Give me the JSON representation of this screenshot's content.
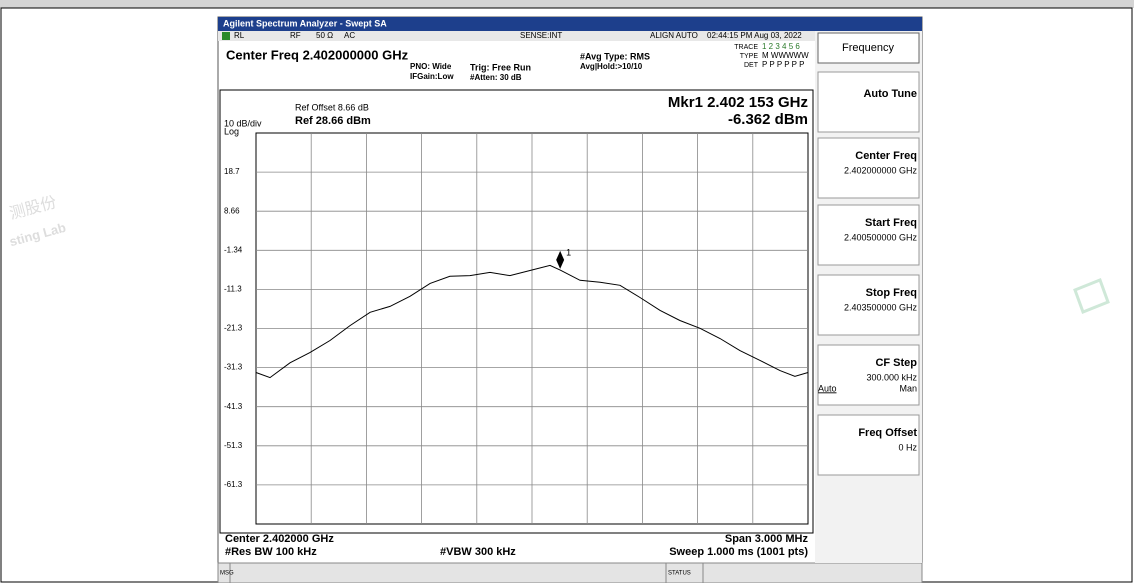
{
  "window": {
    "title": "Agilent Spectrum Analyzer - Swept SA"
  },
  "status": {
    "rl": "RL",
    "rf": "RF",
    "impedance": "50 Ω",
    "coupling": "AC",
    "sense": "SENSE:INT",
    "align": "ALIGN AUTO",
    "datetime": "02:44:15 PM Aug 03, 2022"
  },
  "settings": {
    "center_freq": "Center Freq 2.402000000 GHz",
    "pno": "PNO: Wide",
    "ifgain": "IFGain:Low",
    "trig": "Trig: Free Run",
    "atten": "#Atten: 30 dB",
    "avg_type": "#Avg Type: RMS",
    "avg_hold": "Avg|Hold:>10/10",
    "trace_label": "TRACE",
    "trace_value": "1 2 3 4 5 6",
    "type_label": "TYPE",
    "type_value": "M WWWWW",
    "det_label": "DET",
    "det_value": "P P P P P P"
  },
  "plot": {
    "ref_offset": "Ref Offset 8.66 dB",
    "scale": "10 dB/div",
    "scale_type": "Log",
    "ref_level": "Ref 28.66 dBm",
    "marker_freq": "Mkr1 2.402 153 GHz",
    "marker_level": "-6.362 dBm",
    "ylim": [
      -71.34,
      28.66
    ],
    "yticks": [
      {
        "value": 18.66,
        "label": "18.7"
      },
      8.66,
      -1.34,
      {
        "value": -11.34,
        "label": "-11.3"
      },
      {
        "value": -21.34,
        "label": "-21.3"
      },
      {
        "value": -31.34,
        "label": "-31.3"
      },
      {
        "value": -41.34,
        "label": "-41.3"
      },
      {
        "value": -51.34,
        "label": "-51.3"
      },
      {
        "value": -61.34,
        "label": "-61.3"
      }
    ],
    "xlim": [
      2400.5,
      2403.5
    ],
    "trace": {
      "freq_mhz": [
        2400.5,
        2400.576,
        2400.685,
        2400.793,
        2400.902,
        2401.011,
        2401.12,
        2401.228,
        2401.337,
        2401.446,
        2401.554,
        2401.663,
        2401.772,
        2401.88,
        2401.989,
        2402.098,
        2402.153,
        2402.261,
        2402.37,
        2402.478,
        2402.587,
        2402.696,
        2402.804,
        2402.913,
        2403.022,
        2403.13,
        2403.239,
        2403.348,
        2403.429,
        2403.5
      ],
      "level_dbm": [
        -32.6,
        -33.9,
        -30.1,
        -27.5,
        -24.4,
        -20.6,
        -17.2,
        -15.7,
        -13.1,
        -9.8,
        -8.0,
        -7.8,
        -7.0,
        -7.8,
        -6.5,
        -5.2,
        -6.4,
        -9.0,
        -9.5,
        -10.3,
        -13.4,
        -16.7,
        -19.3,
        -21.3,
        -23.9,
        -27.0,
        -29.5,
        -32.1,
        -33.6,
        -32.6
      ]
    },
    "marker": {
      "label": "1",
      "freq_mhz": 2402.153,
      "level_dbm": -6.362
    }
  },
  "footer": {
    "center": "Center 2.402000 GHz",
    "span": "Span 3.000 MHz",
    "rbw": "#Res BW 100 kHz",
    "vbw": "#VBW 300 kHz",
    "sweep": "Sweep 1.000 ms (1001 pts)",
    "msg": "MSG",
    "status": "STATUS"
  },
  "softkeys": {
    "menu": "Frequency",
    "items": [
      {
        "label": "Auto Tune"
      },
      {
        "label": "Center Freq",
        "value": "2.402000000 GHz"
      },
      {
        "label": "Start Freq",
        "value": "2.400500000 GHz"
      },
      {
        "label": "Stop Freq",
        "value": "2.403500000 GHz"
      },
      {
        "label": "CF Step",
        "value": "300.000 kHz",
        "options": [
          "Auto",
          "Man"
        ]
      },
      {
        "label": "Freq Offset",
        "value": "0 Hz"
      }
    ]
  },
  "watermarks": [
    "测股份",
    "sting Lab"
  ]
}
